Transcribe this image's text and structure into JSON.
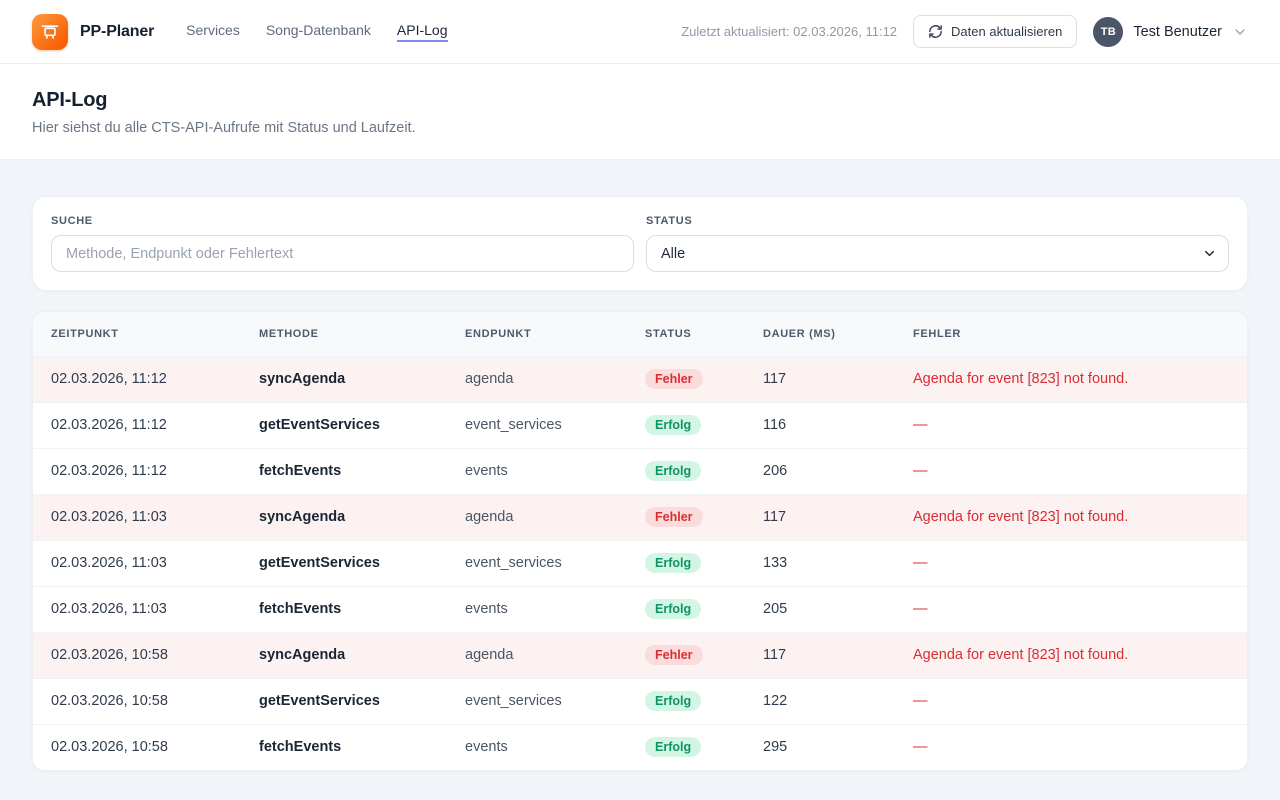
{
  "brand": {
    "name": "PP-Planer"
  },
  "nav": {
    "items": [
      {
        "label": "Services",
        "active": false
      },
      {
        "label": "Song-Datenbank",
        "active": false
      },
      {
        "label": "API-Log",
        "active": true
      }
    ]
  },
  "header": {
    "last_updated": "Zuletzt aktualisiert: 02.03.2026, 11:12",
    "refresh_label": "Daten aktualisieren",
    "user": {
      "initials": "TB",
      "name": "Test Benutzer"
    }
  },
  "page": {
    "title": "API-Log",
    "subtitle": "Hier siehst du alle CTS-API-Aufrufe mit Status und Laufzeit."
  },
  "filters": {
    "search": {
      "label": "SUCHE",
      "placeholder": "Methode, Endpunkt oder Fehlertext",
      "value": ""
    },
    "status": {
      "label": "STATUS",
      "selected": "Alle"
    }
  },
  "table": {
    "columns": [
      "ZEITPUNKT",
      "METHODE",
      "ENDPUNKT",
      "STATUS",
      "DAUER (MS)",
      "FEHLER"
    ],
    "rows": [
      {
        "zeitpunkt": "02.03.2026, 11:12",
        "methode": "syncAgenda",
        "endpunkt": "agenda",
        "status": "Fehler",
        "dauer": "117",
        "fehler": "Agenda for event [823] not found."
      },
      {
        "zeitpunkt": "02.03.2026, 11:12",
        "methode": "getEventServices",
        "endpunkt": "event_services",
        "status": "Erfolg",
        "dauer": "116",
        "fehler": "—"
      },
      {
        "zeitpunkt": "02.03.2026, 11:12",
        "methode": "fetchEvents",
        "endpunkt": "events",
        "status": "Erfolg",
        "dauer": "206",
        "fehler": "—"
      },
      {
        "zeitpunkt": "02.03.2026, 11:03",
        "methode": "syncAgenda",
        "endpunkt": "agenda",
        "status": "Fehler",
        "dauer": "117",
        "fehler": "Agenda for event [823] not found."
      },
      {
        "zeitpunkt": "02.03.2026, 11:03",
        "methode": "getEventServices",
        "endpunkt": "event_services",
        "status": "Erfolg",
        "dauer": "133",
        "fehler": "—"
      },
      {
        "zeitpunkt": "02.03.2026, 11:03",
        "methode": "fetchEvents",
        "endpunkt": "events",
        "status": "Erfolg",
        "dauer": "205",
        "fehler": "—"
      },
      {
        "zeitpunkt": "02.03.2026, 10:58",
        "methode": "syncAgenda",
        "endpunkt": "agenda",
        "status": "Fehler",
        "dauer": "117",
        "fehler": "Agenda for event [823] not found."
      },
      {
        "zeitpunkt": "02.03.2026, 10:58",
        "methode": "getEventServices",
        "endpunkt": "event_services",
        "status": "Erfolg",
        "dauer": "122",
        "fehler": "—"
      },
      {
        "zeitpunkt": "02.03.2026, 10:58",
        "methode": "fetchEvents",
        "endpunkt": "events",
        "status": "Erfolg",
        "dauer": "295",
        "fehler": "—"
      }
    ]
  },
  "colors": {
    "accent_underline": "#7c8cf0",
    "brand_orange": "#f9690e",
    "error_text": "#d92d32",
    "error_badge_bg": "#fbdcdc",
    "error_row_bg": "#fdf2f2",
    "success_text": "#0d946a",
    "success_badge_bg": "#d3f6e4",
    "page_bg": "#f1f4f8"
  }
}
